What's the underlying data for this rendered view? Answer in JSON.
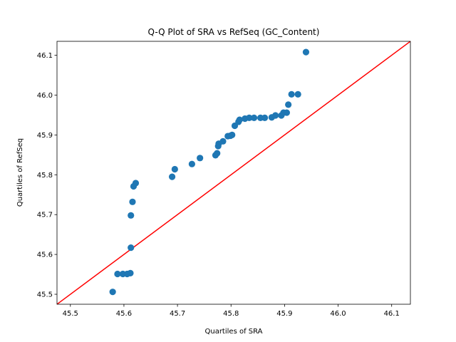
{
  "chart_data": {
    "type": "scatter",
    "title": "Q-Q Plot of SRA vs RefSeq (GC_Content)",
    "xlabel": "Quartiles of SRA",
    "ylabel": "Quartiles of RefSeq",
    "xlim": [
      45.475,
      46.135
    ],
    "ylim": [
      45.475,
      46.135
    ],
    "xticks": [
      "45.5",
      "45.6",
      "45.7",
      "45.8",
      "45.9",
      "46.0",
      "46.1"
    ],
    "yticks": [
      "45.5",
      "45.6",
      "45.7",
      "45.8",
      "45.9",
      "46.0",
      "46.1"
    ],
    "grid": false,
    "marker_color": "#1f77b4",
    "reference_line_color": "#ff0000",
    "reference_line": "y = x",
    "points": [
      [
        45.579,
        45.506
      ],
      [
        45.588,
        45.551
      ],
      [
        45.598,
        45.551
      ],
      [
        45.606,
        45.551
      ],
      [
        45.612,
        45.553
      ],
      [
        45.613,
        45.617
      ],
      [
        45.613,
        45.698
      ],
      [
        45.616,
        45.732
      ],
      [
        45.618,
        45.771
      ],
      [
        45.622,
        45.779
      ],
      [
        45.69,
        45.795
      ],
      [
        45.695,
        45.814
      ],
      [
        45.727,
        45.827
      ],
      [
        45.742,
        45.842
      ],
      [
        45.771,
        45.849
      ],
      [
        45.774,
        45.854
      ],
      [
        45.776,
        45.872
      ],
      [
        45.777,
        45.878
      ],
      [
        45.785,
        45.884
      ],
      [
        45.794,
        45.897
      ],
      [
        45.799,
        45.898
      ],
      [
        45.802,
        45.9
      ],
      [
        45.807,
        45.923
      ],
      [
        45.814,
        45.933
      ],
      [
        45.816,
        45.938
      ],
      [
        45.826,
        45.941
      ],
      [
        45.834,
        45.943
      ],
      [
        45.843,
        45.943
      ],
      [
        45.855,
        45.943
      ],
      [
        45.863,
        45.943
      ],
      [
        45.876,
        45.944
      ],
      [
        45.883,
        45.949
      ],
      [
        45.894,
        45.949
      ],
      [
        45.898,
        45.956
      ],
      [
        45.904,
        45.956
      ],
      [
        45.907,
        45.976
      ],
      [
        45.913,
        46.002
      ],
      [
        45.925,
        46.002
      ],
      [
        45.94,
        46.108
      ]
    ]
  }
}
